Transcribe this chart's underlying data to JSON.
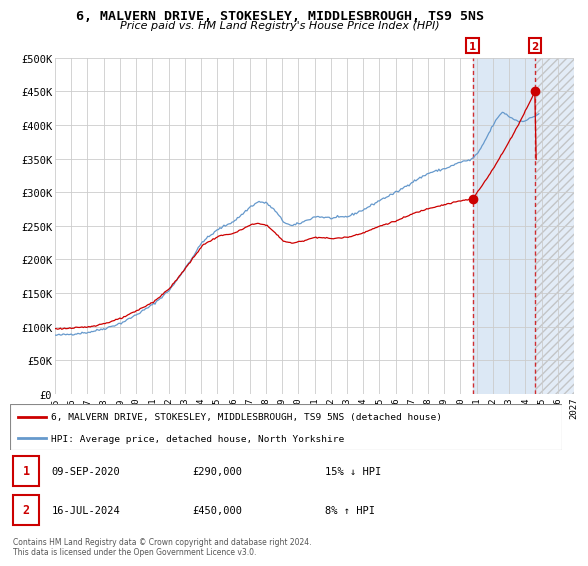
{
  "title": "6, MALVERN DRIVE, STOKESLEY, MIDDLESBROUGH, TS9 5NS",
  "subtitle": "Price paid vs. HM Land Registry's House Price Index (HPI)",
  "ylim": [
    0,
    500000
  ],
  "yticks": [
    0,
    50000,
    100000,
    150000,
    200000,
    250000,
    300000,
    350000,
    400000,
    450000,
    500000
  ],
  "ytick_labels": [
    "£0",
    "£50K",
    "£100K",
    "£150K",
    "£200K",
    "£250K",
    "£300K",
    "£350K",
    "£400K",
    "£450K",
    "£500K"
  ],
  "hpi_color": "#6699cc",
  "price_color": "#cc0000",
  "legend_label_price": "6, MALVERN DRIVE, STOKESLEY, MIDDLESBROUGH, TS9 5NS (detached house)",
  "legend_label_hpi": "HPI: Average price, detached house, North Yorkshire",
  "note1_date": "09-SEP-2020",
  "note1_price": "£290,000",
  "note1_info": "15% ↓ HPI",
  "note2_date": "16-JUL-2024",
  "note2_price": "£450,000",
  "note2_info": "8% ↑ HPI",
  "copyright": "Contains HM Land Registry data © Crown copyright and database right 2024.\nThis data is licensed under the Open Government Licence v3.0.",
  "background_color": "#ffffff",
  "grid_color": "#cccccc",
  "shaded_color": "#dce8f5",
  "hatch_color": "#bbbbbb",
  "xlim": [
    1995,
    2027
  ],
  "xtick_years": [
    1995,
    1996,
    1997,
    1998,
    1999,
    2000,
    2001,
    2002,
    2003,
    2004,
    2005,
    2006,
    2007,
    2008,
    2009,
    2010,
    2011,
    2012,
    2013,
    2014,
    2015,
    2016,
    2017,
    2018,
    2019,
    2020,
    2021,
    2022,
    2023,
    2024,
    2025,
    2026,
    2027
  ],
  "shade_start": 2020.75,
  "shade_end": 2024.58,
  "hatch_start": 2024.58,
  "hatch_end": 2027,
  "vline1_year": 2020.75,
  "vline2_year": 2024.58,
  "marker1_year": 2020.75,
  "marker1_value": 290000,
  "marker2_year": 2024.58,
  "marker2_value": 450000
}
